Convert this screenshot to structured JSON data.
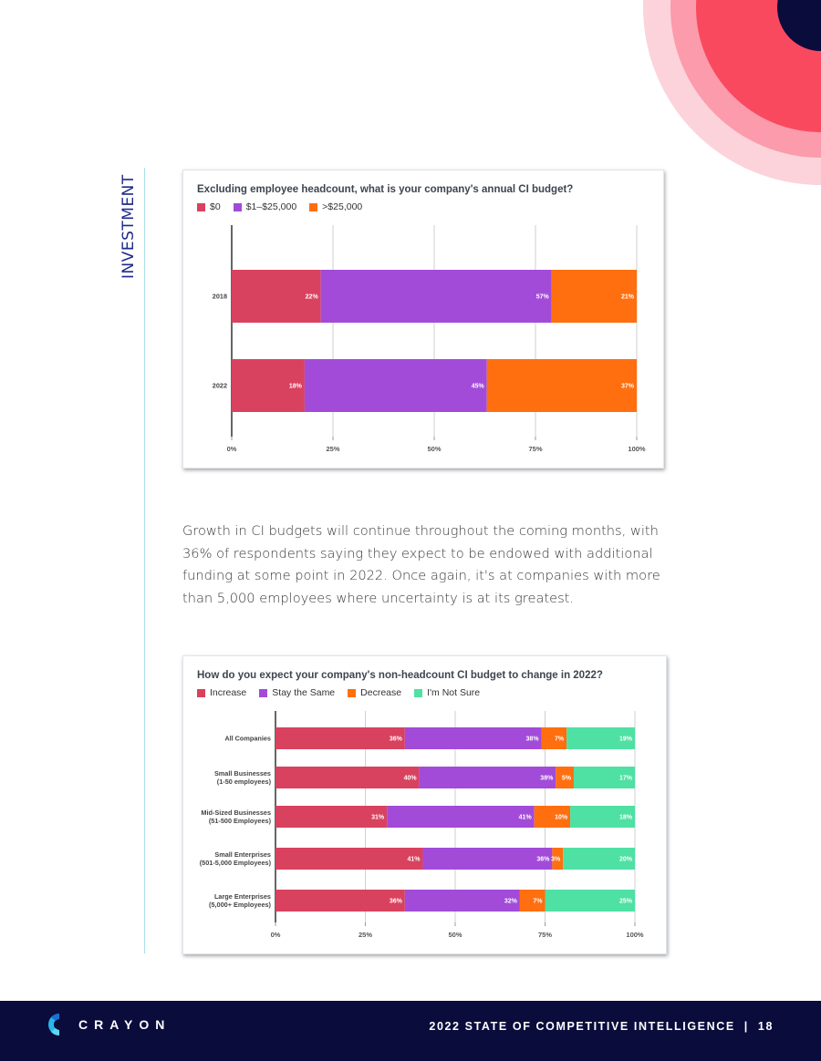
{
  "section_label": "INVESTMENT",
  "colors": {
    "red": "#d8425f",
    "purple": "#a24bd8",
    "orange": "#ff6f0f",
    "green": "#4fe0a3",
    "navy": "#0a0c3c",
    "accent_line": "#a9dce9"
  },
  "chart_data": [
    {
      "type": "bar",
      "orientation": "horizontal",
      "stacked": true,
      "title": "Excluding employee headcount, what is your company's annual CI budget?",
      "categories": [
        "2018",
        "2022"
      ],
      "series": [
        {
          "name": "$0",
          "color": "#d8425f",
          "values": [
            22,
            18
          ],
          "labels": [
            "22%",
            "18%"
          ]
        },
        {
          "name": "$1–$25,000",
          "color": "#a24bd8",
          "values": [
            57,
            45
          ],
          "labels": [
            "57%",
            "45%"
          ]
        },
        {
          "name": ">$25,000",
          "color": "#ff6f0f",
          "values": [
            21,
            37
          ],
          "labels": [
            "21%",
            "37%"
          ]
        }
      ],
      "xlim": [
        0,
        100
      ],
      "xticks": [
        "0%",
        "25%",
        "50%",
        "75%",
        "100%"
      ],
      "grid": true,
      "legend": "top-left"
    },
    {
      "type": "bar",
      "orientation": "horizontal",
      "stacked": true,
      "title": "How do you expect your company's non-headcount CI budget to change in 2022?",
      "categories": [
        [
          "All Companies"
        ],
        [
          "Small Businesses",
          "(1-50 employees)"
        ],
        [
          "Mid-Sized Businesses",
          "(51-500 Employees)"
        ],
        [
          "Small Enterprises",
          "(501-5,000 Employees)"
        ],
        [
          "Large Enterprises",
          "(5,000+ Employees)"
        ]
      ],
      "series": [
        {
          "name": "Increase",
          "color": "#d8425f",
          "values": [
            36,
            40,
            31,
            41,
            36
          ],
          "labels": [
            "36%",
            "40%",
            "31%",
            "41%",
            "36%"
          ]
        },
        {
          "name": "Stay the Same",
          "color": "#a24bd8",
          "values": [
            38,
            38,
            41,
            36,
            32
          ],
          "labels": [
            "38%",
            "38%",
            "41%",
            "36%",
            "32%"
          ]
        },
        {
          "name": "Decrease",
          "color": "#ff6f0f",
          "values": [
            7,
            5,
            10,
            3,
            7
          ],
          "labels": [
            "7%",
            "5%",
            "10%",
            "3%",
            "7%"
          ]
        },
        {
          "name": "I'm Not Sure",
          "color": "#4fe0a3",
          "values": [
            19,
            17,
            18,
            20,
            25
          ],
          "labels": [
            "19%",
            "17%",
            "18%",
            "20%",
            "25%"
          ]
        }
      ],
      "xlim": [
        0,
        100
      ],
      "xticks": [
        "0%",
        "25%",
        "50%",
        "75%",
        "100%"
      ],
      "grid": true,
      "legend": "top-left"
    }
  ],
  "body_text": "Growth in CI budgets will continue throughout the coming months, with 36% of respondents saying they expect to be endowed with additional funding at some point in 2022. Once again, it's at companies with more than 5,000 employees where uncertainty is at its greatest.",
  "footer": {
    "logo_text": "CRAYON",
    "title": "2022 STATE OF COMPETITIVE INTELLIGENCE",
    "separator": "|",
    "page_number": "18"
  }
}
